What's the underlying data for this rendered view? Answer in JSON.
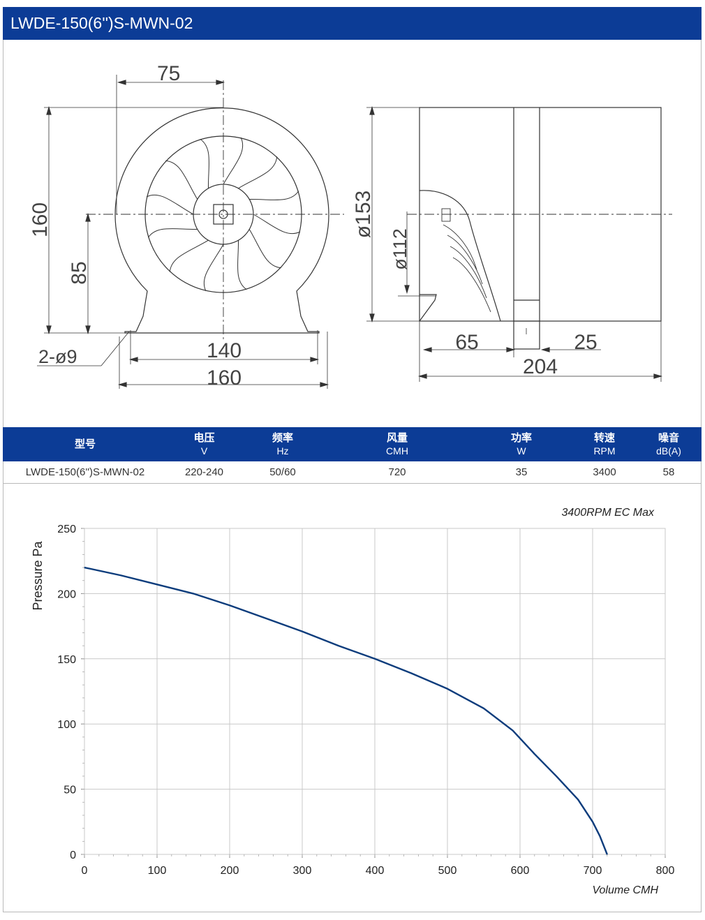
{
  "title": "LWDE-150(6'')S-MWN-02",
  "drawing": {
    "front_view": {
      "dim_top": "75",
      "dim_height": "160",
      "dim_center_height": "85",
      "dim_holes": "2-ø9",
      "dim_hole_spacing": "140",
      "dim_base_width": "160"
    },
    "side_view": {
      "dim_outer_dia": "ø153",
      "dim_inner_dia": "ø112",
      "dim_65": "65",
      "dim_25": "25",
      "dim_length": "204"
    }
  },
  "spec_table": {
    "headers": [
      {
        "label": "型号",
        "unit": ""
      },
      {
        "label": "电压",
        "unit": "V"
      },
      {
        "label": "频率",
        "unit": "Hz"
      },
      {
        "label": "风量",
        "unit": "CMH"
      },
      {
        "label": "功率",
        "unit": "W"
      },
      {
        "label": "转速",
        "unit": "RPM"
      },
      {
        "label": "噪音",
        "unit": "dB(A)"
      }
    ],
    "row": [
      "LWDE-150(6'')S-MWN-02",
      "220-240",
      "50/60",
      "720",
      "35",
      "3400",
      "58"
    ]
  },
  "chart_data": {
    "type": "line",
    "title": "",
    "annotation": "3400RPM EC Max",
    "xlabel": "Volume CMH",
    "ylabel": "Pressure  Pa",
    "xlim": [
      0,
      800
    ],
    "ylim": [
      0,
      250
    ],
    "xticks": [
      "0",
      "100",
      "200",
      "300",
      "400",
      "500",
      "600",
      "700",
      "800"
    ],
    "yticks": [
      "0",
      "50",
      "100",
      "150",
      "200",
      "250"
    ],
    "grid": true,
    "line_color": "#0c3c7c",
    "series": [
      {
        "x": [
          0,
          50,
          100,
          150,
          200,
          250,
          300,
          350,
          400,
          450,
          500,
          550,
          590,
          620,
          650,
          680,
          700,
          710,
          720
        ],
        "y": [
          220,
          214,
          207,
          200,
          191,
          181,
          171,
          160,
          150,
          139,
          127,
          112,
          95,
          77,
          60,
          42,
          25,
          14,
          0
        ]
      }
    ]
  }
}
